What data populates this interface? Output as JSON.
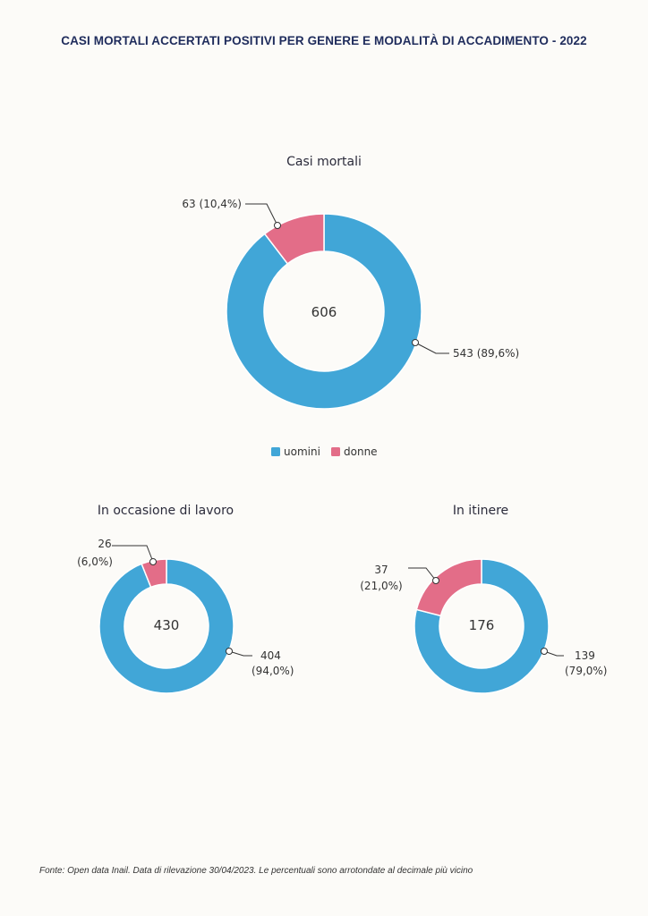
{
  "title": "CASI MORTALI ACCERTATI POSITIVI PER GENERE E MODALITÀ DI ACCADIMENTO - 2022",
  "colors": {
    "uomini": "#41a6d7",
    "donne": "#e36d88"
  },
  "legend": [
    {
      "label": "uomini",
      "color": "#41a6d7"
    },
    {
      "label": "donne",
      "color": "#e36d88"
    }
  ],
  "chart_data": [
    {
      "type": "pie",
      "title": "Casi mortali",
      "total": "606",
      "series": [
        {
          "name": "uomini",
          "value": 543,
          "label": "543 (89,6%)"
        },
        {
          "name": "donne",
          "value": 63,
          "label": "63 (10,4%)"
        }
      ]
    },
    {
      "type": "pie",
      "title": "In occasione di lavoro",
      "total": "430",
      "series": [
        {
          "name": "uomini",
          "value": 404,
          "label_line1": "404",
          "label_line2": "(94,0%)"
        },
        {
          "name": "donne",
          "value": 26,
          "label_line1": "26",
          "label_line2": "(6,0%)"
        }
      ]
    },
    {
      "type": "pie",
      "title": "In itinere",
      "total": "176",
      "series": [
        {
          "name": "uomini",
          "value": 139,
          "label_line1": "139",
          "label_line2": "(79,0%)"
        },
        {
          "name": "donne",
          "value": 37,
          "label_line1": "37",
          "label_line2": "(21,0%)"
        }
      ]
    }
  ],
  "footnote": "Fonte: Open data Inail. Data di rilevazione 30/04/2023. Le percentuali sono arrotondate al decimale più vicino"
}
